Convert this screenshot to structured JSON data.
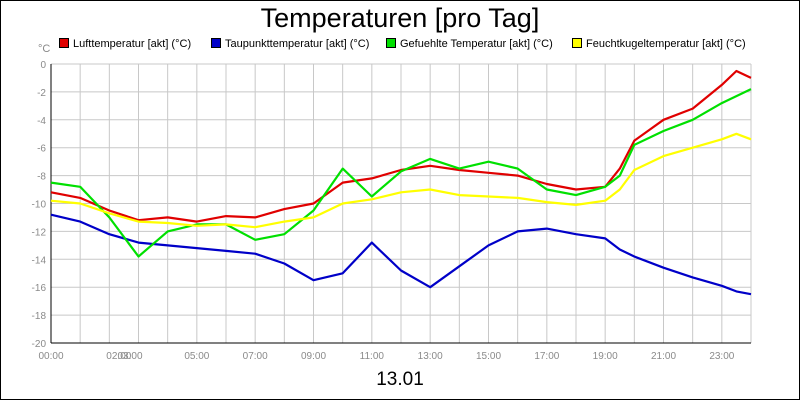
{
  "title": "Temperaturen [pro Tag]",
  "date_label": "13.01",
  "unit_label": "°C",
  "chart_data": {
    "type": "line",
    "title": "Temperaturen [pro Tag]",
    "xlabel": "13.01",
    "ylabel": "°C",
    "ylim": [
      -20,
      0
    ],
    "yticks": [
      0,
      -2,
      -4,
      -6,
      -8,
      -10,
      -12,
      -14,
      -16,
      -18,
      -20
    ],
    "xlim": [
      0,
      24
    ],
    "xtick_labels": [
      "00:00",
      "02:00",
      "03:00",
      "05:00",
      "07:00",
      "09:00",
      "11:00",
      "13:00",
      "15:00",
      "17:00",
      "19:00",
      "21:00",
      "23:00"
    ],
    "xtick_hours": [
      0,
      2,
      3,
      5,
      7,
      9,
      11,
      13,
      15,
      17,
      19,
      21,
      23
    ],
    "grid": true,
    "legend_position": "top",
    "x": [
      0,
      1,
      2,
      3,
      4,
      5,
      6,
      7,
      8,
      9,
      10,
      11,
      12,
      13,
      14,
      15,
      16,
      17,
      18,
      19,
      19.5,
      20,
      21,
      22,
      23,
      23.5,
      24
    ],
    "series": [
      {
        "name": "Lufttemperatur [akt] (°C)",
        "color": "#e00000",
        "values": [
          -9.2,
          -9.6,
          -10.5,
          -11.2,
          -11.0,
          -11.3,
          -10.9,
          -11.0,
          -10.4,
          -10.0,
          -8.5,
          -8.2,
          -7.6,
          -7.3,
          -7.6,
          -7.8,
          -8.0,
          -8.6,
          -9.0,
          -8.8,
          -7.5,
          -5.5,
          -4.0,
          -3.2,
          -1.5,
          -0.5,
          -1.0
        ]
      },
      {
        "name": "Taupunkttemperatur [akt] (°C)",
        "color": "#0000c8",
        "values": [
          -10.8,
          -11.3,
          -12.2,
          -12.8,
          -13.0,
          -13.2,
          -13.4,
          -13.6,
          -14.3,
          -15.5,
          -15.0,
          -12.8,
          -14.8,
          -16.0,
          -14.5,
          -13.0,
          -12.0,
          -11.8,
          -12.2,
          -12.5,
          -13.3,
          -13.8,
          -14.6,
          -15.3,
          -15.9,
          -16.3,
          -16.5
        ]
      },
      {
        "name": "Gefuehlte Temperatur [akt] (°C)",
        "color": "#00e000",
        "values": [
          -8.5,
          -8.8,
          -11.0,
          -13.8,
          -12.0,
          -11.5,
          -11.5,
          -12.6,
          -12.2,
          -10.5,
          -7.5,
          -9.5,
          -7.7,
          -6.8,
          -7.5,
          -7.0,
          -7.5,
          -9.0,
          -9.4,
          -8.8,
          -8.0,
          -5.8,
          -4.8,
          -4.0,
          -2.8,
          -2.3,
          -1.8
        ]
      },
      {
        "name": "Feuchtkugeltemperatur [akt] (°C)",
        "color": "#ffff00",
        "values": [
          -9.8,
          -10.0,
          -10.7,
          -11.3,
          -11.4,
          -11.6,
          -11.5,
          -11.7,
          -11.3,
          -11.0,
          -10.0,
          -9.7,
          -9.2,
          -9.0,
          -9.4,
          -9.5,
          -9.6,
          -9.9,
          -10.1,
          -9.8,
          -9.0,
          -7.6,
          -6.6,
          -6.0,
          -5.4,
          -5.0,
          -5.4
        ]
      }
    ]
  }
}
